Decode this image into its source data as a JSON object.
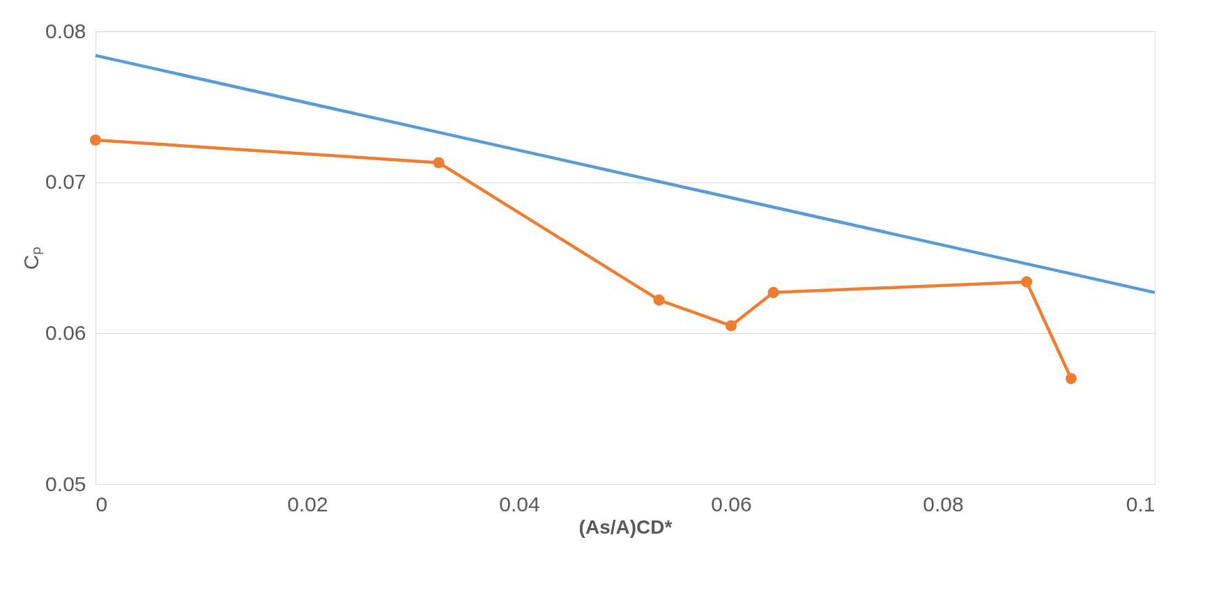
{
  "chart_data": {
    "type": "line",
    "xlabel": "(As/A)CD*",
    "ylabel": "Cₚ",
    "series": [
      {
        "color": "#5b9bd5",
        "marker": "none",
        "x": [
          0,
          0.1
        ],
        "values": [
          0.0784,
          0.0627
        ]
      },
      {
        "color": "#ed7d31",
        "marker": "circle",
        "x": [
          0,
          0.0324,
          0.0532,
          0.06,
          0.064,
          0.0879,
          0.0921
        ],
        "values": [
          0.0728,
          0.0713,
          0.0622,
          0.0605,
          0.0627,
          0.0634,
          0.057
        ]
      }
    ],
    "xlim": [
      0,
      0.1
    ],
    "xticks": [
      0,
      0.02,
      0.04,
      0.06,
      0.08,
      {
        "value": 0.1,
        "label": "0.1"
      }
    ],
    "ylim": [
      0.05,
      0.08
    ],
    "yticks": [
      0.05,
      0.06,
      0.07,
      0.08
    ],
    "grid": "y",
    "line_style": "solid"
  }
}
